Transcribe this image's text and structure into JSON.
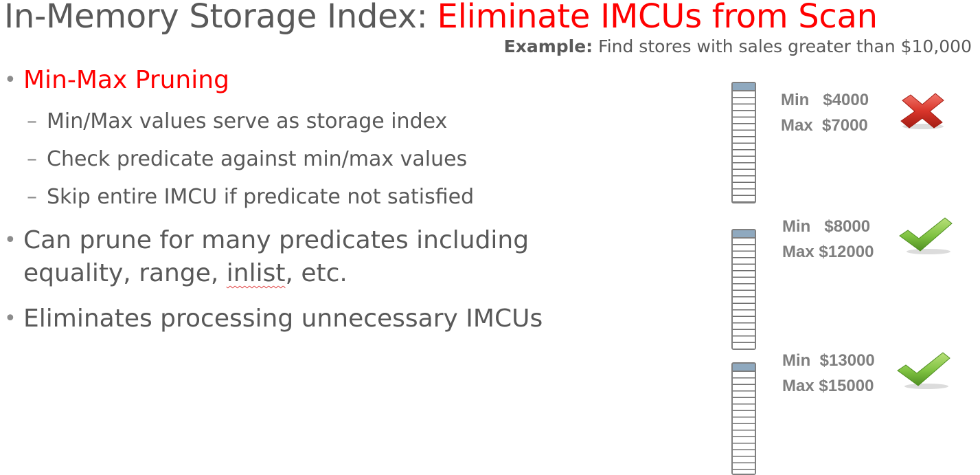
{
  "title": {
    "prefix": "In-Memory Storage Index:",
    "highlight": "Eliminate IMCUs from Scan"
  },
  "example": {
    "label": "Example:",
    "text": "Find stores with sales greater than $10,000"
  },
  "bullets": [
    {
      "text": "Min-Max Pruning",
      "sub": [
        "Min/Max values serve as storage index",
        "Check predicate against min/max values",
        "Skip entire IMCU if predicate not satisfied"
      ]
    },
    {
      "line1": "Can prune for many predicates including",
      "line2_before": "equality, range, ",
      "line2_flagged": "inlist",
      "line2_after": ", etc."
    },
    {
      "text": "Eliminates processing unnecessary IMCUs"
    }
  ],
  "imcus": [
    {
      "min_label": "Min",
      "min_value": "$4000",
      "max_label": "Max",
      "max_value": "$7000",
      "result": "pruned",
      "icon": "red-x-icon"
    },
    {
      "min_label": "Min",
      "min_value": "$8000",
      "max_label": "Max",
      "max_value": "$12000",
      "result": "scanned",
      "icon": "green-check-icon"
    },
    {
      "min_label": "Min",
      "min_value": "$13000",
      "max_label": "Max",
      "max_value": "$15000",
      "result": "scanned",
      "icon": "green-check-icon"
    }
  ],
  "colors": {
    "text": "#595959",
    "accent": "#ff0000",
    "imcu_cap": "#8fa9bf",
    "check": "#7fc241",
    "cross": "#d9362b"
  }
}
